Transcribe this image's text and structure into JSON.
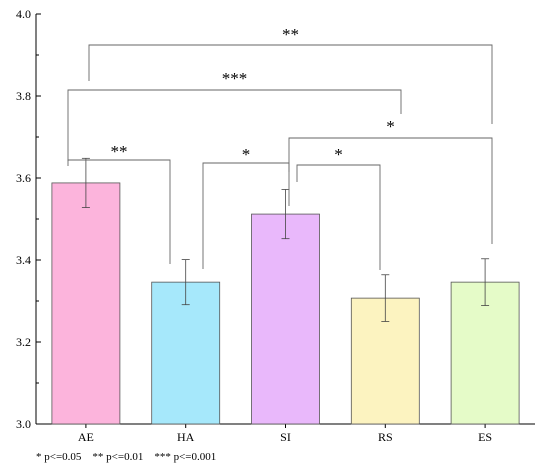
{
  "chart_data": {
    "type": "bar",
    "categories": [
      "AE",
      "HA",
      "SI",
      "RS",
      "ES"
    ],
    "values": [
      3.588,
      3.346,
      3.512,
      3.307,
      3.346
    ],
    "errors": [
      0.06,
      0.055,
      0.06,
      0.057,
      0.057
    ],
    "colors": [
      "#fcb4dc",
      "#a6e8fb",
      "#e9b8fb",
      "#fcf3c0",
      "#e5fbc8"
    ],
    "ylim": [
      3.0,
      4.0
    ],
    "yticks": [
      "3.0",
      "3.2",
      "3.4",
      "3.6",
      "3.8",
      "4.0"
    ],
    "title": "",
    "xlabel": "",
    "ylabel": "",
    "significance": [
      {
        "from": "AE",
        "to": "HA",
        "label": "**"
      },
      {
        "from": "HA",
        "to": "SI",
        "label": "*"
      },
      {
        "from": "SI",
        "to": "RS",
        "label": "*"
      },
      {
        "from": "SI",
        "to": "ES",
        "label": "*"
      },
      {
        "from": "AE",
        "to": "RS",
        "label": "***"
      },
      {
        "from": "AE",
        "to": "ES",
        "label": "**"
      }
    ]
  },
  "footnote": "* p<=0.05    ** p<=0.01    *** p<=0.001"
}
